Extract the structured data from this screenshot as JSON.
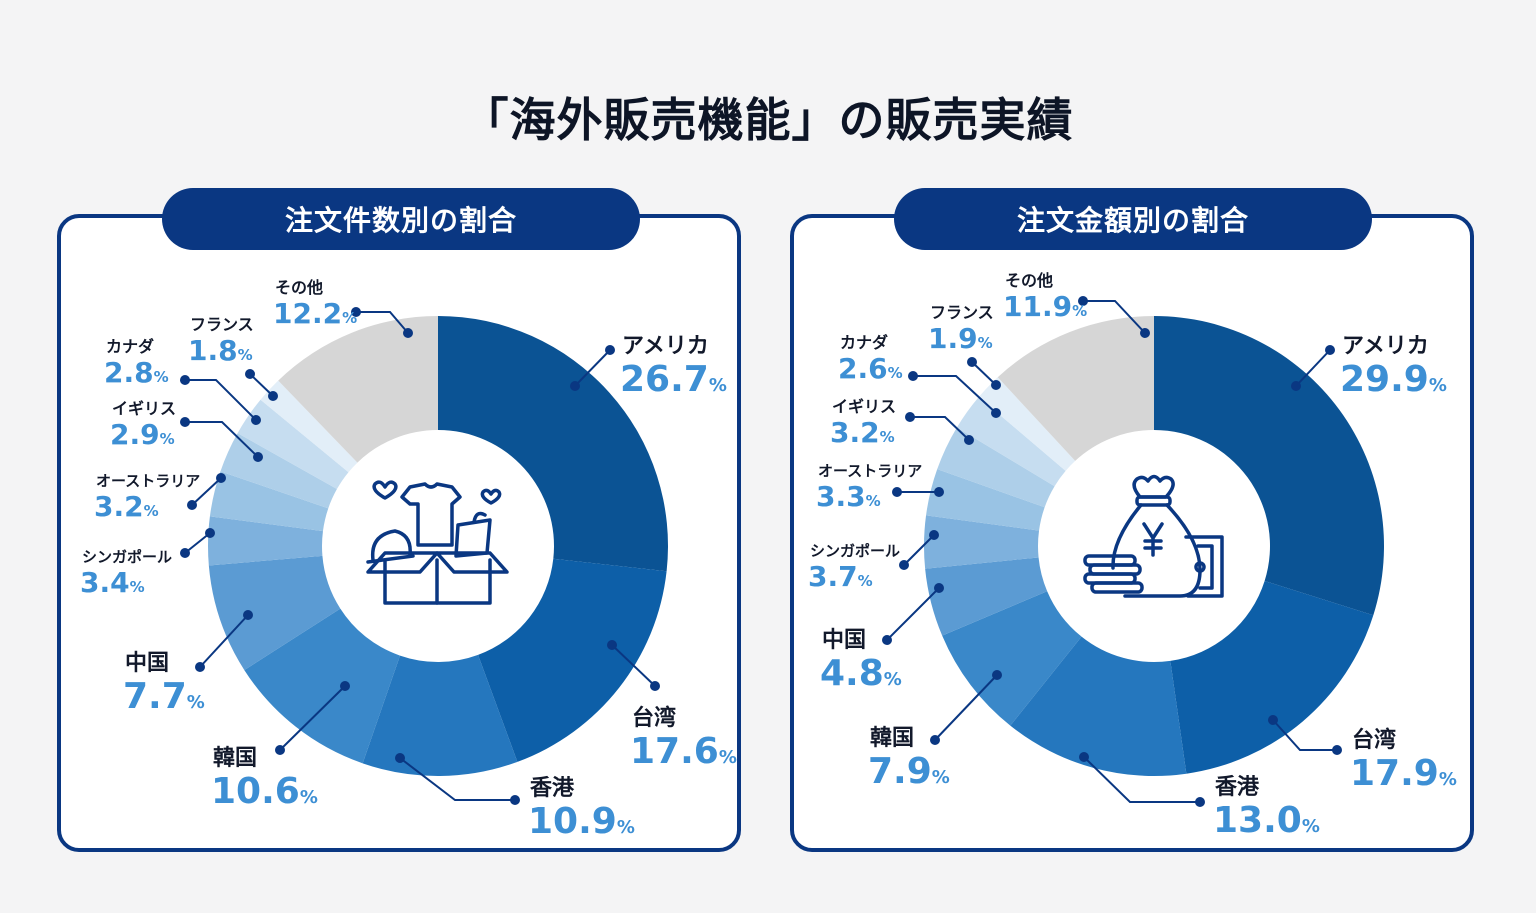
{
  "title": "「海外販売機能」の販売実績",
  "panels": [
    {
      "header": "注文件数別の割合",
      "icon": "gift-box-clothes-icon"
    },
    {
      "header": "注文金額別の割合",
      "icon": "money-bag-yen-icon"
    }
  ],
  "colors": {
    "header_bg": "#0a3782",
    "border": "#0a3782",
    "value_text": "#3d8fd4",
    "leader": "#0a3782",
    "slices": [
      "#0b5394",
      "#0d5fa8",
      "#2577be",
      "#3a88c9",
      "#5b9bd3",
      "#7eb1dd",
      "#99c3e4",
      "#aecfe9",
      "#c6ddf0",
      "#e2eef8",
      "#d6d6d6"
    ]
  },
  "chart_data": [
    {
      "type": "pie",
      "title": "注文件数別の割合",
      "donut": true,
      "categories": [
        "アメリカ",
        "台湾",
        "香港",
        "韓国",
        "中国",
        "シンガポール",
        "オーストラリア",
        "イギリス",
        "カナダ",
        "フランス",
        "その他"
      ],
      "values": [
        26.7,
        17.6,
        10.9,
        10.6,
        7.7,
        3.4,
        3.2,
        2.9,
        2.8,
        1.8,
        12.2
      ],
      "labels": [
        "26.7",
        "17.6",
        "10.9",
        "10.6",
        "7.7",
        "3.4",
        "3.2",
        "2.9",
        "2.8",
        "1.8",
        "12.2"
      ],
      "unit": "%"
    },
    {
      "type": "pie",
      "title": "注文金額別の割合",
      "donut": true,
      "categories": [
        "アメリカ",
        "台湾",
        "香港",
        "韓国",
        "中国",
        "シンガポール",
        "オーストラリア",
        "イギリス",
        "カナダ",
        "フランス",
        "その他"
      ],
      "values": [
        29.9,
        17.9,
        13.0,
        7.9,
        4.8,
        3.7,
        3.3,
        3.2,
        2.6,
        1.9,
        11.9
      ],
      "labels": [
        "29.9",
        "17.9",
        "13.0",
        "7.9",
        "4.8",
        "3.7",
        "3.3",
        "3.2",
        "2.6",
        "1.9",
        "11.9"
      ],
      "unit": "%"
    }
  ]
}
